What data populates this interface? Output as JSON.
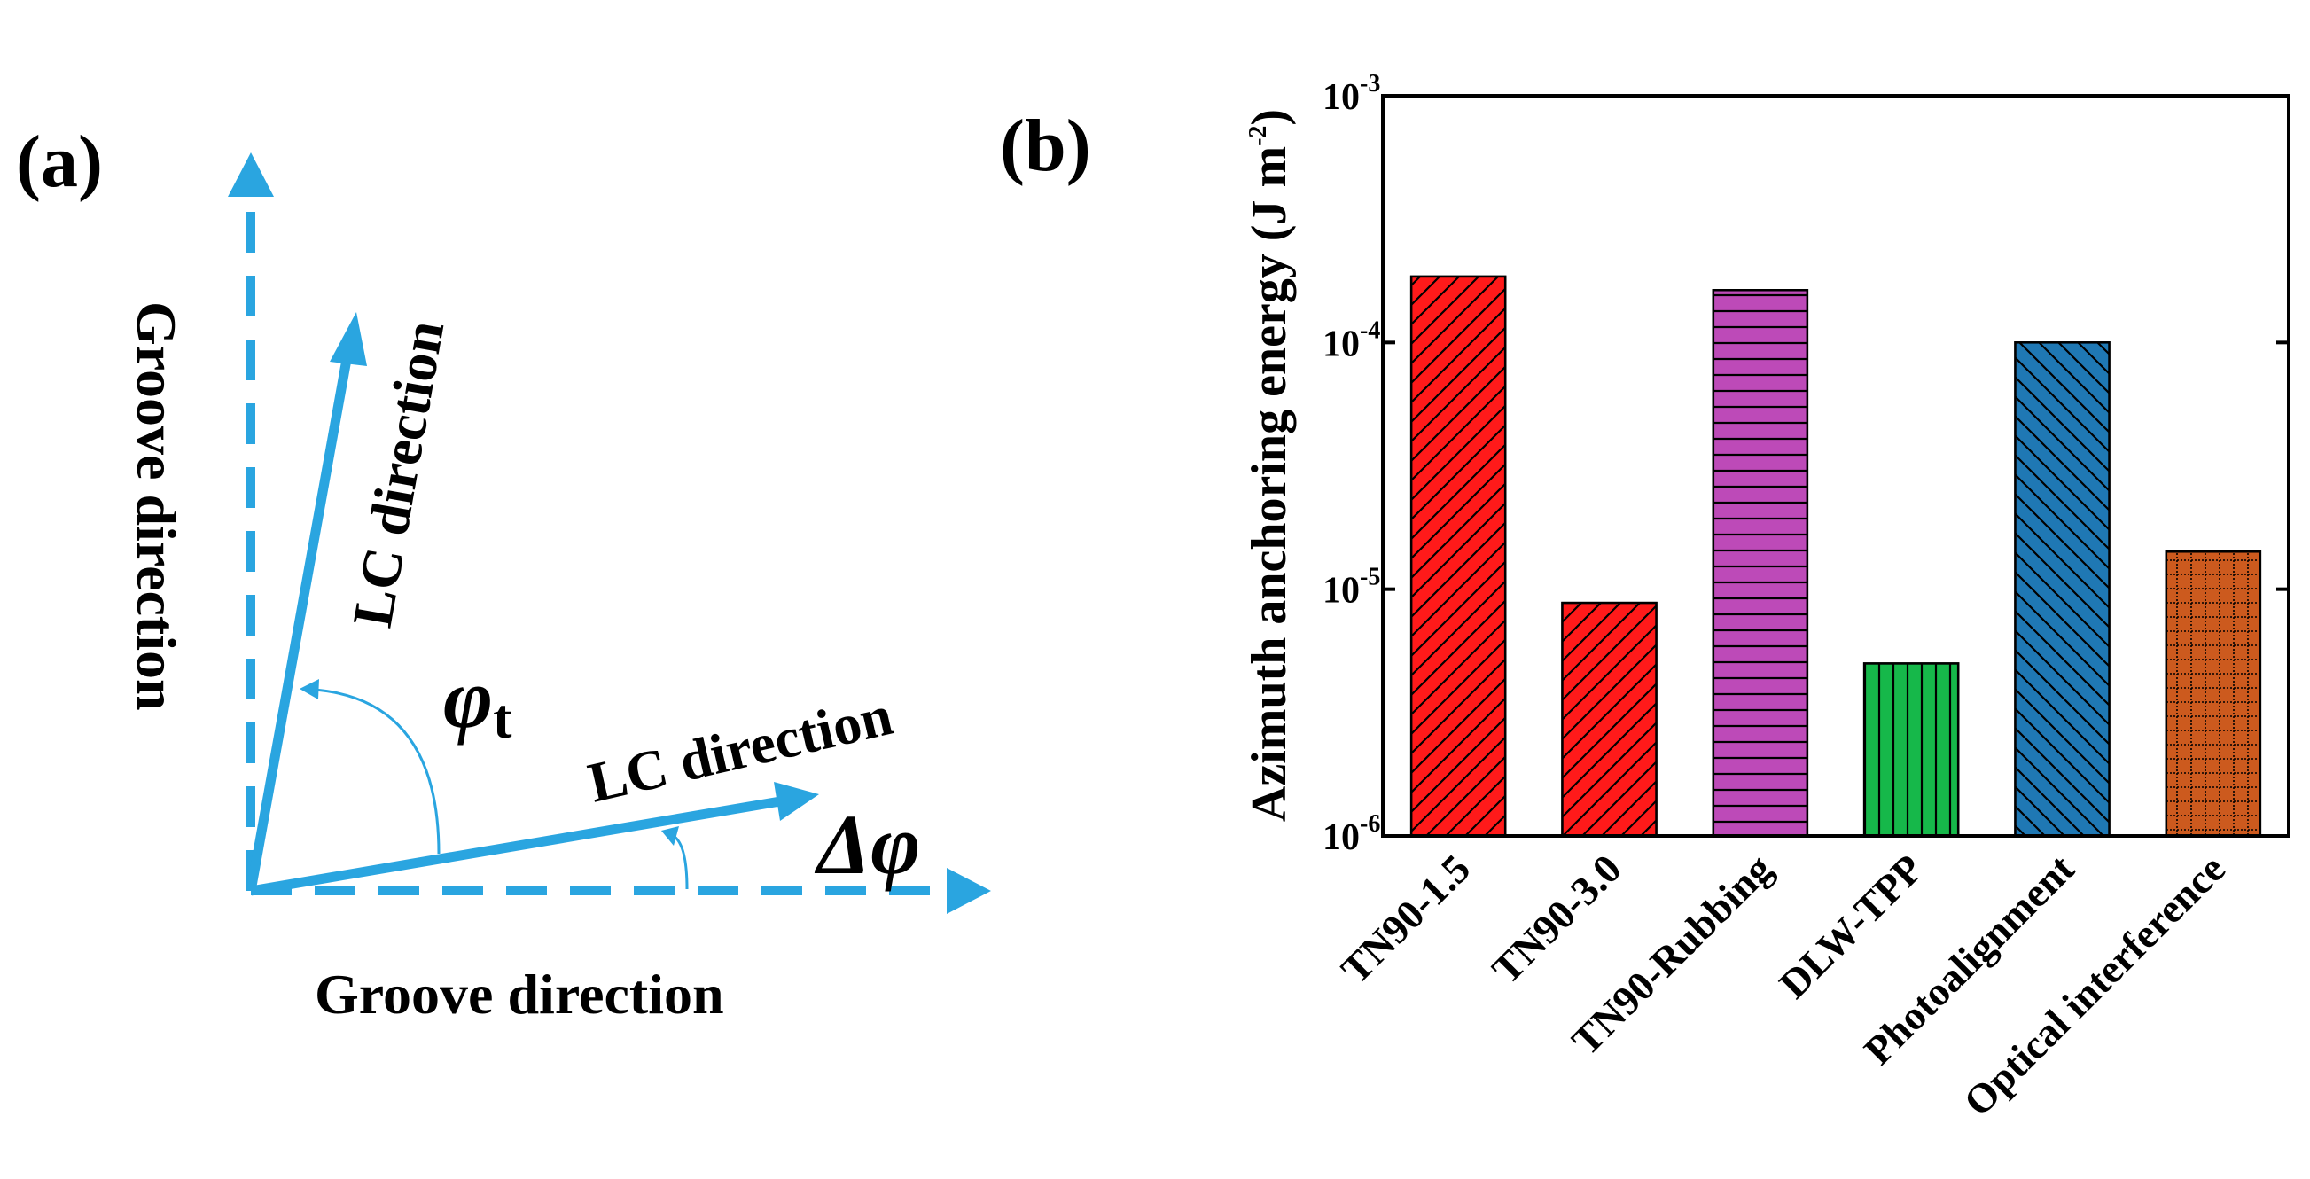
{
  "panel_a": {
    "label": "(a)",
    "groove_label_x": "Groove direction",
    "groove_label_y": "Groove direction",
    "lc_label_1": "LC direction",
    "lc_label_2": "LC direction",
    "phi_t_symbol": "φ",
    "phi_t_subscript": "t",
    "delta_phi": "Δφ",
    "arrow_color": "#2aa5e0"
  },
  "panel_b": {
    "label": "(b)"
  },
  "chart_data": {
    "type": "bar",
    "yscale": "log",
    "title": "",
    "xlabel": "",
    "ylabel": "Azimuth anchoring energy (J m",
    "ylabel_exponent": "-2",
    "ylabel_close": ")",
    "ylim": [
      1e-06,
      0.001
    ],
    "yticks": [
      {
        "base": "10",
        "exp": "-6",
        "value": 1e-06
      },
      {
        "base": "10",
        "exp": "-5",
        "value": 1e-05
      },
      {
        "base": "10",
        "exp": "-4",
        "value": 0.0001
      },
      {
        "base": "10",
        "exp": "-3",
        "value": 0.001
      }
    ],
    "categories": [
      "TN90-1.5",
      "TN90-3.0",
      "TN90-Rubbing",
      "DLW-TPP",
      "Photoalignment",
      "Optical interference"
    ],
    "values": [
      0.000185,
      8.8e-06,
      0.000163,
      5e-06,
      0.0001,
      1.42e-05
    ],
    "colors": [
      "#ff1a1a",
      "#ff1a1a",
      "#bd4ab8",
      "#16b84a",
      "#1f78b4",
      "#cc5a1e"
    ],
    "patterns": [
      "diag-right",
      "diag-right",
      "horizontal",
      "vertical",
      "diag-left",
      "grid"
    ]
  }
}
